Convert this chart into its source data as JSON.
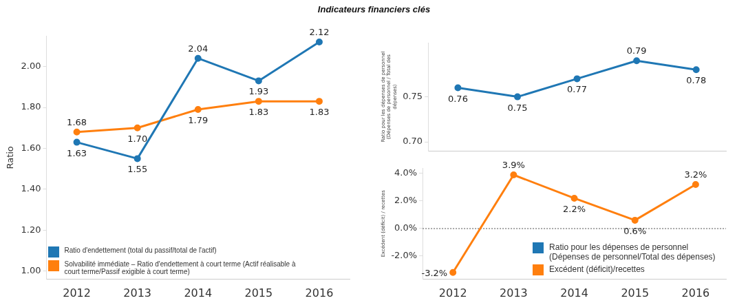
{
  "chart_data": [
    {
      "type": "line",
      "title": "Indicateurs financiers clés",
      "ylabel": "Ratio",
      "categories": [
        "2012",
        "2013",
        "2014",
        "2015",
        "2016"
      ],
      "series": [
        {
          "name": "Ratio d'endettement (total du passif/total de l'actif)",
          "color": "#1f77b4",
          "values": [
            1.63,
            1.55,
            2.04,
            1.93,
            2.12
          ],
          "value_labels": [
            "1.63",
            "1.55",
            "2.04",
            "1.93",
            "2.12"
          ]
        },
        {
          "name": "Solvabilité immédiate – Ratio d'endettement à court terme (Actif réalisable à court terme/Passif exigible à court terme)",
          "color": "#ff7f0e",
          "values": [
            1.68,
            1.7,
            1.79,
            1.83,
            1.83
          ],
          "value_labels": [
            "1.68",
            "1.70",
            "1.79",
            "1.83",
            "1.83"
          ]
        }
      ],
      "ylim": [
        0.96,
        2.15
      ],
      "yticks": [
        {
          "value": 1,
          "label": "1.00"
        },
        {
          "value": 1.2,
          "label": "1.20"
        },
        {
          "value": 1.4,
          "label": "1.40"
        },
        {
          "value": 1.6,
          "label": "1.60"
        },
        {
          "value": 1.8,
          "label": "1.80"
        },
        {
          "value": 2,
          "label": "2.00"
        }
      ],
      "grid": false,
      "legend": "bottom left",
      "marker": "circle",
      "line_style": "solid"
    },
    {
      "type": "line",
      "ylabel": "Ratio pour les dépenses de personnel (Dépenses de personnel / Total des dépenses)",
      "categories": [
        "2012",
        "2013",
        "2014",
        "2015",
        "2016"
      ],
      "series": [
        {
          "name": "Ratio pour les dépenses de personnel (Dépenses de personnel/Total des dépenses)",
          "color": "#1f77b4",
          "values": [
            0.76,
            0.75,
            0.77,
            0.79,
            0.78
          ],
          "value_labels": [
            "0.76",
            "0.75",
            "0.77",
            "0.79",
            "0.78"
          ]
        }
      ],
      "ylim": [
        0.69,
        0.81
      ],
      "yticks": [
        {
          "value": 0.7,
          "label": "0.70"
        },
        0.75
      ],
      "grid": false,
      "legend": "bottom",
      "marker": "circle",
      "line_style": "solid",
      "tick_labels": "y"
    },
    {
      "type": "line",
      "ylabel": "Excédent (déficit) / recettes",
      "categories": [
        "2012",
        "2013",
        "2014",
        "2015",
        "2016"
      ],
      "series": [
        {
          "name": "Excédent (déficit)/recettes",
          "color": "#ff7f0e",
          "values": [
            -3.2,
            3.9,
            2.2,
            0.6,
            3.2
          ],
          "value_labels": [
            "-3.2%",
            "3.9%",
            "2.2%",
            "0.6%",
            "3.2%"
          ]
        }
      ],
      "ylim": [
        -3.7,
        4.4
      ],
      "yticks": [
        {
          "value": -2,
          "label": "-2.0%"
        },
        {
          "value": 0,
          "label": "0.0%"
        },
        {
          "value": 2,
          "label": "2.0%"
        },
        {
          "value": 4,
          "label": "4.0%"
        }
      ],
      "ref_lines": [
        {
          "axis": "y",
          "value": 0,
          "line_style": "dotted",
          "color": "#888888"
        }
      ],
      "grid": false,
      "legend": "bottom",
      "marker": "circle",
      "line_style": "solid"
    }
  ]
}
